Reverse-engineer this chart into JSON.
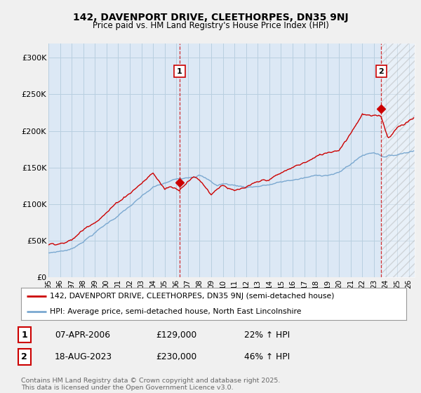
{
  "title_line1": "142, DAVENPORT DRIVE, CLEETHORPES, DN35 9NJ",
  "title_line2": "Price paid vs. HM Land Registry's House Price Index (HPI)",
  "ylabel_ticks": [
    "£0",
    "£50K",
    "£100K",
    "£150K",
    "£200K",
    "£250K",
    "£300K"
  ],
  "ytick_vals": [
    0,
    50000,
    100000,
    150000,
    200000,
    250000,
    300000
  ],
  "ylim": [
    0,
    320000
  ],
  "xlim_start": 1995.0,
  "xlim_end": 2026.5,
  "background_color": "#f0f0f0",
  "plot_bg_color": "#dce8f5",
  "grid_color": "#b8cfe0",
  "red_line_color": "#cc0000",
  "blue_line_color": "#7aa8d0",
  "marker1_x": 2006.27,
  "marker1_y": 129000,
  "marker2_x": 2023.63,
  "marker2_y": 230000,
  "vline1_x": 2006.27,
  "vline2_x": 2023.63,
  "legend_red_label": "142, DAVENPORT DRIVE, CLEETHORPES, DN35 9NJ (semi-detached house)",
  "legend_blue_label": "HPI: Average price, semi-detached house, North East Lincolnshire",
  "note1_num": "1",
  "note1_date": "07-APR-2006",
  "note1_price": "£129,000",
  "note1_hpi": "22% ↑ HPI",
  "note2_num": "2",
  "note2_date": "18-AUG-2023",
  "note2_price": "£230,000",
  "note2_hpi": "46% ↑ HPI",
  "footer": "Contains HM Land Registry data © Crown copyright and database right 2025.\nThis data is licensed under the Open Government Licence v3.0.",
  "xtick_years": [
    1995,
    1996,
    1997,
    1998,
    1999,
    2000,
    2001,
    2002,
    2003,
    2004,
    2005,
    2006,
    2007,
    2008,
    2009,
    2010,
    2011,
    2012,
    2013,
    2014,
    2015,
    2016,
    2017,
    2018,
    2019,
    2020,
    2021,
    2022,
    2023,
    2024,
    2025,
    2026
  ]
}
